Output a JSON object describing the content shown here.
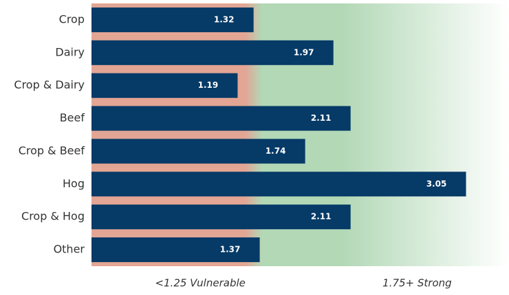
{
  "chart_data": {
    "type": "bar",
    "orientation": "horizontal",
    "categories": [
      "Crop",
      "Dairy",
      "Crop & Dairy",
      "Beef",
      "Crop & Beef",
      "Hog",
      "Crop & Hog",
      "Other"
    ],
    "values": [
      1.32,
      1.97,
      1.19,
      2.11,
      1.74,
      3.05,
      2.11,
      1.37
    ],
    "color": "#063a67",
    "xlim": [
      0,
      3.4
    ],
    "zones": [
      {
        "label": "<1.25 Vulnerable",
        "value": 1.25,
        "color": "#e3a594"
      },
      {
        "label": "1.75+ Strong",
        "value": 1.75,
        "color": "#b2d8b6"
      }
    ]
  }
}
